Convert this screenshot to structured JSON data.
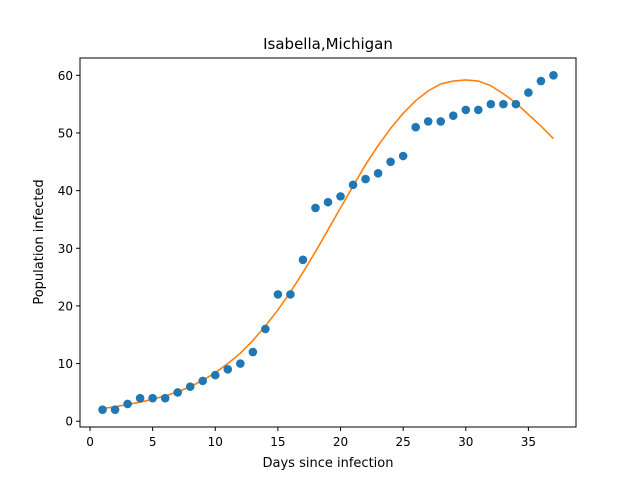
{
  "chart_data": {
    "type": "scatter",
    "title": "Isabella,Michigan",
    "xlabel": "Days since infection",
    "ylabel": "Population infected",
    "xlim": [
      -0.8,
      38.8
    ],
    "ylim": [
      -1.0,
      63.0
    ],
    "xticks": [
      0,
      5,
      10,
      15,
      20,
      25,
      30,
      35
    ],
    "yticks": [
      0,
      10,
      20,
      30,
      40,
      50,
      60
    ],
    "grid": false,
    "legend": "none",
    "series": [
      {
        "kind": "scatter",
        "color": "#1f77b4",
        "x": [
          1,
          2,
          3,
          4,
          5,
          6,
          7,
          8,
          9,
          10,
          11,
          12,
          13,
          14,
          15,
          16,
          17,
          18,
          19,
          20,
          21,
          22,
          23,
          24,
          25,
          26,
          27,
          28,
          29,
          30,
          31,
          32,
          33,
          34,
          35,
          36,
          37
        ],
        "y": [
          2,
          2,
          3,
          4,
          4,
          4,
          5,
          6,
          7,
          8,
          9,
          10,
          12,
          16,
          22,
          22,
          28,
          37,
          38,
          39,
          41,
          42,
          43,
          45,
          46,
          51,
          52,
          52,
          53,
          54,
          54,
          55,
          55,
          55,
          57,
          59,
          60
        ]
      },
      {
        "kind": "line",
        "color": "#ff7f0e",
        "x": [
          1,
          2,
          3,
          4,
          5,
          6,
          7,
          8,
          9,
          10,
          11,
          12,
          13,
          14,
          15,
          16,
          17,
          18,
          19,
          20,
          21,
          22,
          23,
          24,
          25,
          26,
          27,
          28,
          29,
          30,
          31,
          32,
          33,
          34,
          35,
          36,
          37
        ],
        "y": [
          2.2,
          2.5,
          2.9,
          3.3,
          3.8,
          4.4,
          5.1,
          6.0,
          7.1,
          8.4,
          10.0,
          11.8,
          14.0,
          16.5,
          19.3,
          22.4,
          25.8,
          29.4,
          33.2,
          37.0,
          40.8,
          44.5,
          47.8,
          50.8,
          53.4,
          55.6,
          57.3,
          58.5,
          59.0,
          59.2,
          59.0,
          58.2,
          56.8,
          55.2,
          53.2,
          51.2,
          49.0
        ]
      }
    ]
  }
}
